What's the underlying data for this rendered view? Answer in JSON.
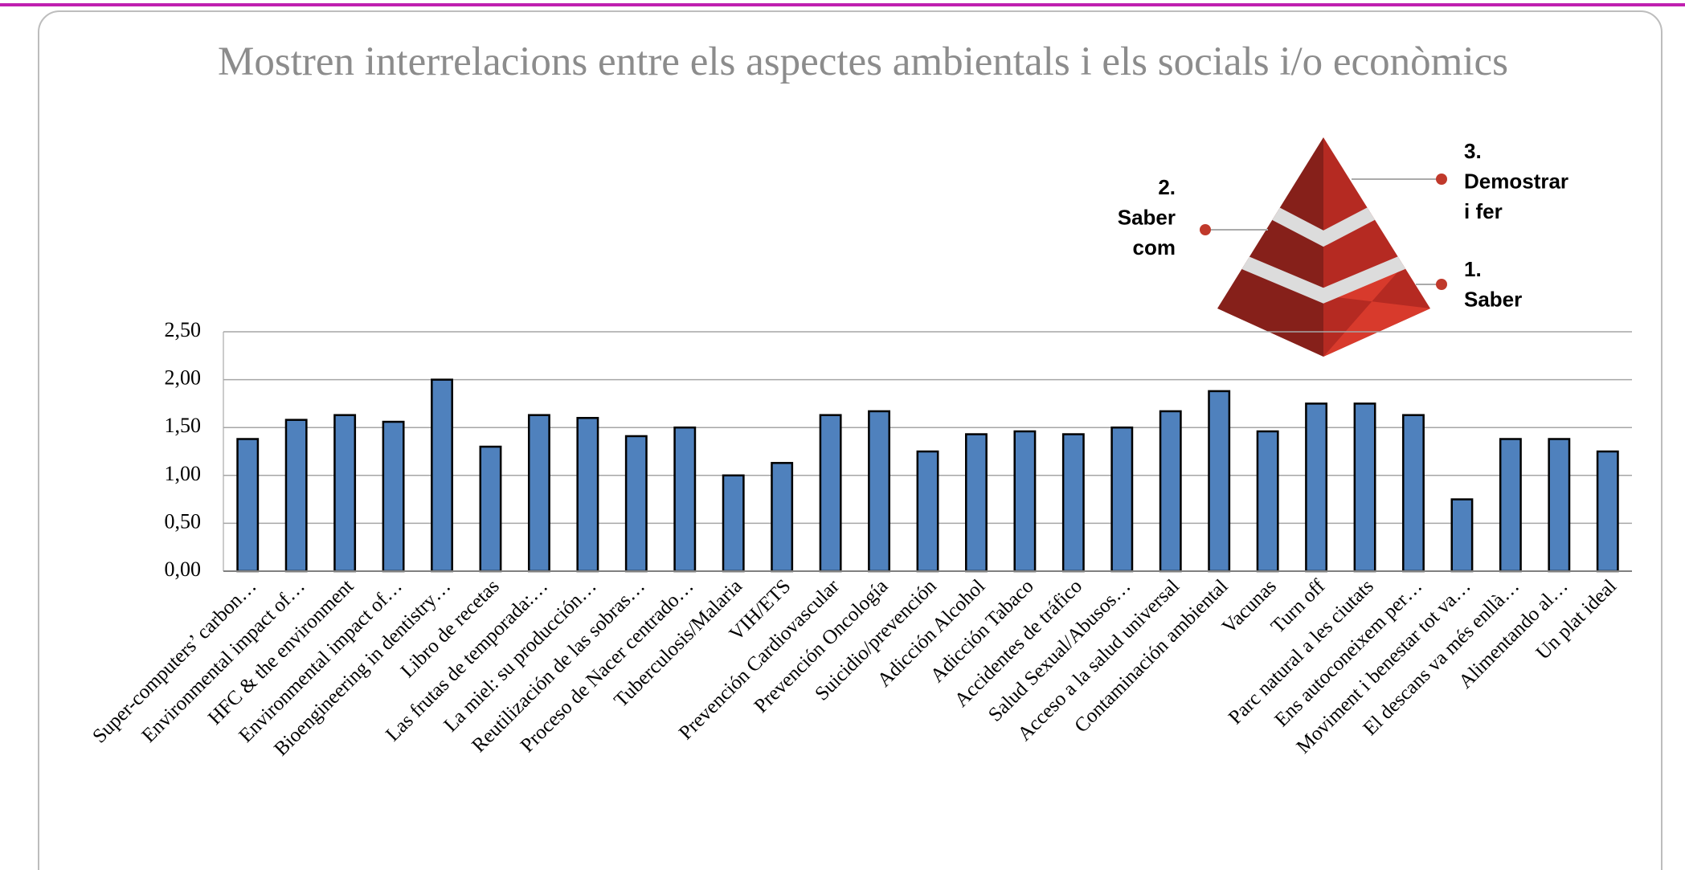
{
  "chart_data": {
    "type": "bar",
    "title": "Mostren interrelacions entre els aspectes ambientals i els socials i/o econòmics",
    "categories": [
      "Super-computers’ carbon…",
      "Environmental impact of…",
      "HFC & the environment",
      "Environmental impact of…",
      "Bioengineering in dentistry…",
      "Libro de recetas",
      "Las frutas de temporada:…",
      "La miel: su producción…",
      "Reutilización de las sobras…",
      "Proceso de Nacer centrado…",
      "Tuberculosis/Malaria",
      "VIH/ETS",
      "Prevención Cardiovascular",
      "Prevención Oncología",
      "Suicidio/prevención",
      "Adicción Alcohol",
      "Adicción Tabaco",
      "Accidentes de tráfico",
      "Salud Sexual/Abusos…",
      "Acceso a la salud universal",
      "Contaminación ambiental",
      "Vacunas",
      "Turn off",
      "Parc natural a les ciutats",
      "Ens autoconeixem per…",
      "Moviment i benestar tot va…",
      "El descans va més enllà…",
      "Alimentando al…",
      "Un plat ideal"
    ],
    "values": [
      1.38,
      1.58,
      1.63,
      1.56,
      2.0,
      1.3,
      1.63,
      1.6,
      1.41,
      1.5,
      1.0,
      1.13,
      1.63,
      1.67,
      1.25,
      1.43,
      1.46,
      1.43,
      1.5,
      1.67,
      1.88,
      1.46,
      1.75,
      1.75,
      1.63,
      0.75,
      1.38,
      1.38,
      1.25
    ],
    "color": "#4f81bd",
    "ylim": [
      0,
      2.5
    ],
    "yticks": [
      {
        "value": 0,
        "label": "0,00"
      },
      {
        "value": 0.5,
        "label": "0,50"
      },
      {
        "value": 1,
        "label": "1,00"
      },
      {
        "value": 1.5,
        "label": "1,50"
      },
      {
        "value": 2,
        "label": "2,00"
      },
      {
        "value": 2.5,
        "label": "2,50"
      }
    ],
    "grid": true
  },
  "pyramid": {
    "levels": [
      {
        "lines": [
          "1.",
          "Saber"
        ]
      },
      {
        "lines": [
          "2.",
          "Saber",
          "com"
        ]
      },
      {
        "lines": [
          "3.",
          "Demostrar",
          "i fer"
        ]
      }
    ]
  }
}
